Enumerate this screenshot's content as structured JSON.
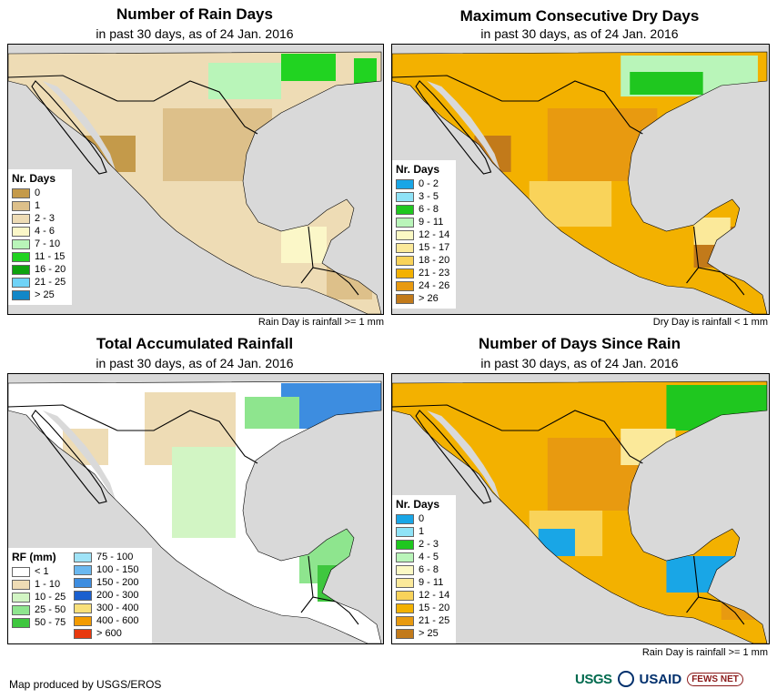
{
  "panels": [
    {
      "title": "Number of Rain Days",
      "subtitle": "in past 30 days, as of 24 Jan. 2016",
      "note": "Rain Day is rainfall >= 1 mm",
      "legend": {
        "title": "Nr. Days",
        "items": [
          {
            "label": "0",
            "color": "#c49a4a"
          },
          {
            "label": "1",
            "color": "#ddc08a"
          },
          {
            "label": "2 - 3",
            "color": "#eedcb5"
          },
          {
            "label": "4 - 6",
            "color": "#fbf7c8"
          },
          {
            "label": "7 - 10",
            "color": "#b9f5b9"
          },
          {
            "label": "11 - 15",
            "color": "#21d321"
          },
          {
            "label": "16 - 20",
            "color": "#0ea30e"
          },
          {
            "label": "21 - 25",
            "color": "#6fd3f7"
          },
          {
            "label": "> 25",
            "color": "#1187c8"
          }
        ]
      }
    },
    {
      "title": "Maximum Consecutive Dry Days",
      "subtitle": "in past 30 days, as of 24 Jan. 2016",
      "note": "Dry Day is rainfall < 1 mm",
      "legend": {
        "title": "Nr. Days",
        "items": [
          {
            "label": "0 - 2",
            "color": "#19a6e6"
          },
          {
            "label": "3 - 5",
            "color": "#8fe3f7"
          },
          {
            "label": "6 - 8",
            "color": "#1fc71f"
          },
          {
            "label": "9 - 11",
            "color": "#b9f5b9"
          },
          {
            "label": "12 - 14",
            "color": "#fbf9c4"
          },
          {
            "label": "15 - 17",
            "color": "#fbe99a"
          },
          {
            "label": "18 - 20",
            "color": "#f9d35a"
          },
          {
            "label": "21 - 23",
            "color": "#f3b100"
          },
          {
            "label": "24 - 26",
            "color": "#e89a10"
          },
          {
            "label": "> 26",
            "color": "#c27a1a"
          }
        ]
      }
    },
    {
      "title": "Total Accumulated Rainfall",
      "subtitle": "in past 30 days, as of 24 Jan. 2016",
      "note": "",
      "legend": {
        "title": "RF (mm)",
        "items": [
          {
            "label": "< 1",
            "color": "#ffffff"
          },
          {
            "label": "1 - 10",
            "color": "#eedcb5"
          },
          {
            "label": "10 - 25",
            "color": "#d2f5c4"
          },
          {
            "label": "25 - 50",
            "color": "#8ee58e"
          },
          {
            "label": "50 - 75",
            "color": "#3fc73f"
          }
        ],
        "items2": [
          {
            "label": "75 - 100",
            "color": "#9fe3f7"
          },
          {
            "label": "100 - 150",
            "color": "#6ab8f0"
          },
          {
            "label": "150 - 200",
            "color": "#3d8de0"
          },
          {
            "label": "200 - 300",
            "color": "#1a5fcf"
          },
          {
            "label": "300 - 400",
            "color": "#f9e07a"
          },
          {
            "label": "400 - 600",
            "color": "#f39b00"
          },
          {
            "label": "> 600",
            "color": "#e8380d"
          }
        ]
      }
    },
    {
      "title": "Number of Days Since Rain",
      "subtitle": "in past 30 days, as of 24 Jan. 2016",
      "note": "Rain Day is rainfall >= 1 mm",
      "legend": {
        "title": "Nr. Days",
        "items": [
          {
            "label": "0",
            "color": "#19a6e6"
          },
          {
            "label": "1",
            "color": "#8fe3f7"
          },
          {
            "label": "2 - 3",
            "color": "#1fc71f"
          },
          {
            "label": "4 - 5",
            "color": "#b9f5b9"
          },
          {
            "label": "6 - 8",
            "color": "#fbf9c4"
          },
          {
            "label": "9 - 11",
            "color": "#fbe99a"
          },
          {
            "label": "12 - 14",
            "color": "#f9d35a"
          },
          {
            "label": "15 - 20",
            "color": "#f3b100"
          },
          {
            "label": "21 - 25",
            "color": "#e89a10"
          },
          {
            "label": "> 25",
            "color": "#c27a1a"
          }
        ]
      }
    }
  ],
  "footer": {
    "credit": "Map produced by USGS/EROS"
  },
  "logos": {
    "usgs": "USGS",
    "usaid": "USAID",
    "fews": "FEWS NET"
  },
  "colors": {
    "ocean": "#d9d9d9",
    "border": "#000000"
  }
}
